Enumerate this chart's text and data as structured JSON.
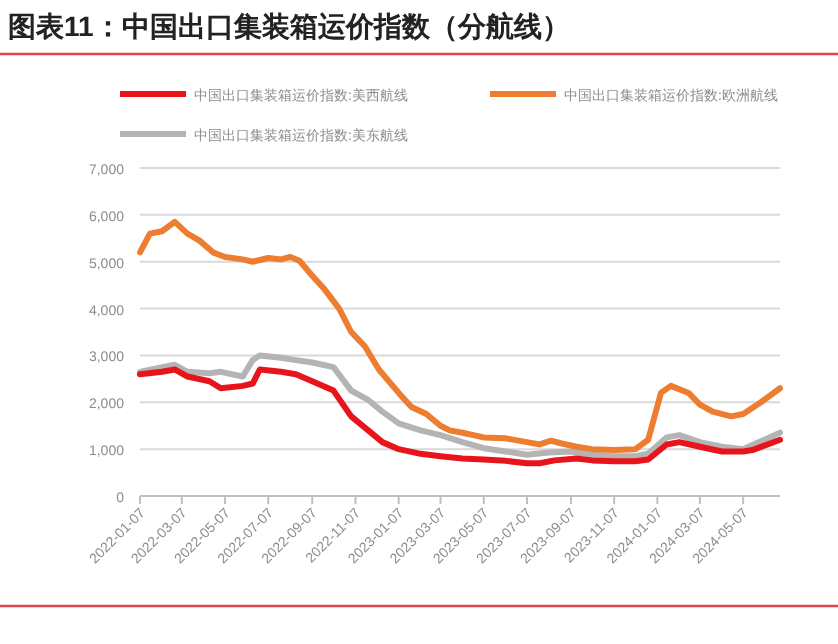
{
  "chart_data": {
    "type": "line",
    "title": "图表11：中国出口集装箱运价指数（分航线）",
    "xlim": [
      "2022-01-07",
      "2024-06-28"
    ],
    "xticks": [
      "2022-01-07",
      "2022-03-07",
      "2022-05-07",
      "2022-07-07",
      "2022-09-07",
      "2022-11-07",
      "2023-01-07",
      "2023-03-07",
      "2023-05-07",
      "2023-07-07",
      "2023-09-07",
      "2023-11-07",
      "2024-01-07",
      "2024-03-07",
      "2024-05-07"
    ],
    "ylim": [
      0,
      7000
    ],
    "yticks": [
      {
        "value": 0,
        "label": "0"
      },
      {
        "value": 1000,
        "label": "1,000"
      },
      {
        "value": 2000,
        "label": "2,000"
      },
      {
        "value": 3000,
        "label": "3,000"
      },
      {
        "value": 4000,
        "label": "4,000"
      },
      {
        "value": 5000,
        "label": "5,000"
      },
      {
        "value": 6000,
        "label": "6,000"
      },
      {
        "value": 7000,
        "label": "7,000"
      }
    ],
    "grid": "y",
    "legend": "top",
    "line_style": "solid",
    "marker": "none",
    "series": [
      {
        "name": "中国出口集装箱运价指数:美西航线",
        "color": "#e8141c",
        "x": [
          "2022-01-07",
          "2022-02-07",
          "2022-02-25",
          "2022-03-15",
          "2022-04-15",
          "2022-05-01",
          "2022-06-01",
          "2022-06-15",
          "2022-06-25",
          "2022-07-25",
          "2022-08-15",
          "2022-09-07",
          "2022-10-07",
          "2022-11-01",
          "2022-11-25",
          "2022-12-15",
          "2023-01-07",
          "2023-02-07",
          "2023-03-07",
          "2023-04-07",
          "2023-05-07",
          "2023-06-07",
          "2023-07-07",
          "2023-07-25",
          "2023-08-15",
          "2023-09-15",
          "2023-10-07",
          "2023-11-07",
          "2023-12-07",
          "2023-12-25",
          "2024-01-20",
          "2024-02-07",
          "2024-03-07",
          "2024-04-07",
          "2024-05-07",
          "2024-05-20",
          "2024-06-28"
        ],
        "values": [
          2600,
          2650,
          2700,
          2550,
          2450,
          2300,
          2350,
          2400,
          2700,
          2650,
          2600,
          2450,
          2250,
          1700,
          1400,
          1150,
          1000,
          900,
          850,
          800,
          780,
          750,
          700,
          700,
          760,
          800,
          760,
          740,
          740,
          780,
          1100,
          1150,
          1050,
          950,
          950,
          980,
          1200
        ]
      },
      {
        "name": "中国出口集装箱运价指数:欧洲航线",
        "color": "#ed7d31",
        "x": [
          "2022-01-07",
          "2022-01-21",
          "2022-02-07",
          "2022-02-25",
          "2022-03-15",
          "2022-04-01",
          "2022-04-20",
          "2022-05-07",
          "2022-06-01",
          "2022-06-15",
          "2022-07-07",
          "2022-07-25",
          "2022-08-07",
          "2022-08-20",
          "2022-09-07",
          "2022-09-25",
          "2022-10-15",
          "2022-11-01",
          "2022-11-20",
          "2022-12-10",
          "2023-01-07",
          "2023-01-25",
          "2023-02-15",
          "2023-03-07",
          "2023-03-20",
          "2023-04-07",
          "2023-05-07",
          "2023-06-07",
          "2023-07-07",
          "2023-07-25",
          "2023-08-10",
          "2023-08-25",
          "2023-09-15",
          "2023-10-07",
          "2023-11-07",
          "2023-12-07",
          "2023-12-25",
          "2024-01-12",
          "2024-01-26",
          "2024-02-20",
          "2024-03-07",
          "2024-03-25",
          "2024-04-20",
          "2024-05-07",
          "2024-06-01",
          "2024-06-28"
        ],
        "values": [
          5200,
          5600,
          5650,
          5850,
          5600,
          5450,
          5200,
          5100,
          5050,
          5000,
          5080,
          5050,
          5100,
          5020,
          4700,
          4400,
          4000,
          3500,
          3200,
          2700,
          2200,
          1900,
          1750,
          1500,
          1400,
          1350,
          1250,
          1230,
          1150,
          1100,
          1180,
          1120,
          1050,
          1000,
          980,
          1000,
          1200,
          2200,
          2350,
          2200,
          1950,
          1800,
          1700,
          1750,
          2000,
          2300
        ]
      },
      {
        "name": "中国出口集装箱运价指数:美东航线",
        "color": "#b4b4b4",
        "x": [
          "2022-01-07",
          "2022-02-07",
          "2022-02-25",
          "2022-03-15",
          "2022-04-15",
          "2022-05-01",
          "2022-06-01",
          "2022-06-15",
          "2022-06-25",
          "2022-07-25",
          "2022-08-15",
          "2022-09-07",
          "2022-10-07",
          "2022-11-01",
          "2022-11-25",
          "2022-12-15",
          "2023-01-07",
          "2023-02-07",
          "2023-03-07",
          "2023-04-07",
          "2023-05-07",
          "2023-06-07",
          "2023-07-07",
          "2023-08-07",
          "2023-09-07",
          "2023-10-07",
          "2023-11-07",
          "2023-12-07",
          "2023-12-25",
          "2024-01-20",
          "2024-02-07",
          "2024-03-07",
          "2024-04-07",
          "2024-05-07",
          "2024-06-28"
        ],
        "values": [
          2650,
          2750,
          2800,
          2650,
          2620,
          2650,
          2550,
          2900,
          3000,
          2950,
          2900,
          2850,
          2750,
          2250,
          2050,
          1800,
          1550,
          1400,
          1300,
          1150,
          1020,
          950,
          880,
          930,
          950,
          880,
          850,
          850,
          900,
          1250,
          1300,
          1150,
          1050,
          1000,
          1350
        ]
      }
    ]
  }
}
